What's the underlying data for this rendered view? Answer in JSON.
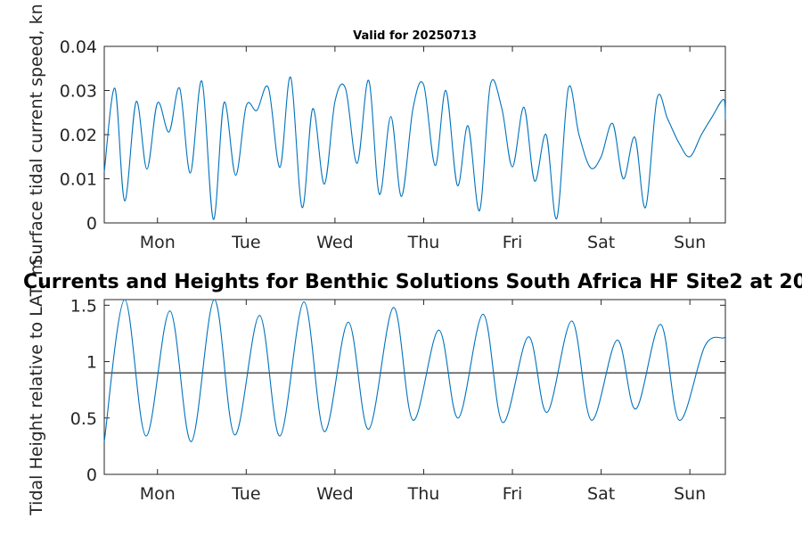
{
  "page": {
    "subtitle": "Valid for 20250713",
    "title": "Currents and Heights for Benthic Solutions South Africa HF Site2 at 20"
  },
  "colors": {
    "series": "#0072BD",
    "reference_line": "#404040",
    "axes": "#262626"
  },
  "chart_data": [
    {
      "type": "line",
      "title": "Valid for 20250713",
      "ylabel": "Surface tidal current speed, kn",
      "xlabel": "",
      "x_tick_labels": [
        "Mon",
        "Tue",
        "Wed",
        "Thu",
        "Fri",
        "Sat",
        "Sun"
      ],
      "x_tick_positions_days": [
        1,
        2,
        3,
        4,
        5,
        6,
        7
      ],
      "xlim_days": [
        0.4,
        7.4
      ],
      "ylim": [
        0,
        0.04
      ],
      "y_ticks": [
        0,
        0.01,
        0.02,
        0.03,
        0.04
      ],
      "y_tick_labels": [
        "0",
        "0.01",
        "0.02",
        "0.03",
        "0.04"
      ],
      "grid": false,
      "series": [
        {
          "x": [
            0.4,
            0.52,
            0.63,
            0.76,
            0.88,
            1.0,
            1.13,
            1.25,
            1.37,
            1.5,
            1.63,
            1.75,
            1.88,
            2.0,
            2.12,
            2.25,
            2.38,
            2.5,
            2.63,
            2.75,
            2.88,
            3.0,
            3.12,
            3.25,
            3.38,
            3.5,
            3.63,
            3.75,
            3.88,
            4.0,
            4.13,
            4.25,
            4.38,
            4.5,
            4.63,
            4.75,
            4.88,
            5.0,
            5.13,
            5.25,
            5.38,
            5.5,
            5.63,
            5.75,
            5.88,
            6.0,
            6.13,
            6.25,
            6.38,
            6.5,
            6.63,
            6.75,
            6.88,
            7.0,
            7.13,
            7.25,
            7.38,
            7.4
          ],
          "y": [
            0.0115,
            0.0305,
            0.005,
            0.0275,
            0.0122,
            0.0272,
            0.0206,
            0.0305,
            0.0113,
            0.0321,
            0.0008,
            0.0273,
            0.0108,
            0.0265,
            0.0255,
            0.0306,
            0.0126,
            0.033,
            0.0035,
            0.0259,
            0.0088,
            0.0275,
            0.0304,
            0.0135,
            0.0323,
            0.0065,
            0.0241,
            0.006,
            0.026,
            0.0313,
            0.013,
            0.03,
            0.0085,
            0.022,
            0.0028,
            0.0312,
            0.026,
            0.0127,
            0.0262,
            0.0095,
            0.02,
            0.001,
            0.0305,
            0.02,
            0.0125,
            0.015,
            0.0225,
            0.01,
            0.0194,
            0.0035,
            0.0282,
            0.0235,
            0.018,
            0.015,
            0.02,
            0.024,
            0.028,
            0.0235
          ]
        }
      ]
    },
    {
      "type": "line",
      "title": "Currents and Heights for Benthic Solutions South Africa HF Site2 at 20",
      "ylabel": "Tidal Height relative to LAT, m",
      "xlabel": "",
      "x_tick_labels": [
        "Mon",
        "Tue",
        "Wed",
        "Thu",
        "Fri",
        "Sat",
        "Sun"
      ],
      "x_tick_positions_days": [
        1,
        2,
        3,
        4,
        5,
        6,
        7
      ],
      "xlim_days": [
        0.4,
        7.4
      ],
      "ylim": [
        0,
        1.55
      ],
      "y_ticks": [
        0,
        0.5,
        1,
        1.5
      ],
      "y_tick_labels": [
        "0",
        "0.5",
        "1",
        "1.5"
      ],
      "grid": false,
      "reference_line_y": 0.9,
      "series": [
        {
          "x": [
            0.4,
            0.63,
            0.87,
            1.14,
            1.38,
            1.64,
            1.87,
            2.15,
            2.38,
            2.65,
            2.88,
            3.15,
            3.38,
            3.66,
            3.88,
            4.17,
            4.39,
            4.67,
            4.89,
            5.18,
            5.39,
            5.67,
            5.89,
            6.18,
            6.39,
            6.67,
            6.88,
            7.17,
            7.38,
            7.4
          ],
          "y": [
            0.29,
            1.55,
            0.34,
            1.45,
            0.29,
            1.55,
            0.35,
            1.41,
            0.34,
            1.53,
            0.38,
            1.35,
            0.4,
            1.48,
            0.48,
            1.28,
            0.5,
            1.42,
            0.46,
            1.22,
            0.55,
            1.36,
            0.48,
            1.19,
            0.58,
            1.33,
            0.48,
            1.14,
            1.21,
            1.21
          ]
        }
      ]
    }
  ]
}
